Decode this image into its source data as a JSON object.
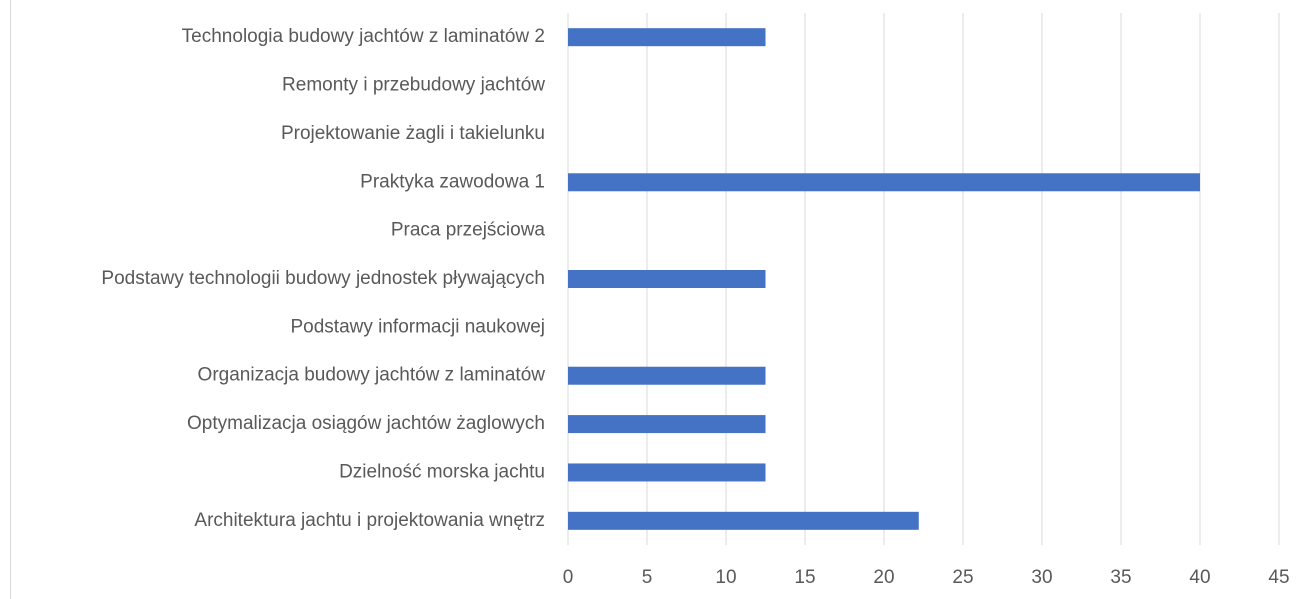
{
  "chart_data": {
    "type": "hbar",
    "categories": [
      "Technologia budowy jachtów z laminatów 2",
      "Remonty i przebudowy jachtów",
      "Projektowanie żagli i takielunku",
      "Praktyka zawodowa 1",
      "Praca przejściowa",
      "Podstawy technologii budowy jednostek pływających",
      "Podstawy informacji naukowej",
      "Organizacja budowy jachtów z laminatów",
      "Optymalizacja osiągów jachtów żaglowych",
      "Dzielność morska jachtu",
      "Architektura jachtu i projektowania wnętrz"
    ],
    "values": [
      12.5,
      0,
      0,
      40,
      0,
      12.5,
      0,
      12.5,
      12.5,
      12.5,
      22.2
    ],
    "color": "#4472c4",
    "xlim": [
      0,
      45
    ],
    "xticks": [
      0,
      5,
      10,
      15,
      20,
      25,
      30,
      35,
      40,
      45
    ],
    "grid": true
  }
}
